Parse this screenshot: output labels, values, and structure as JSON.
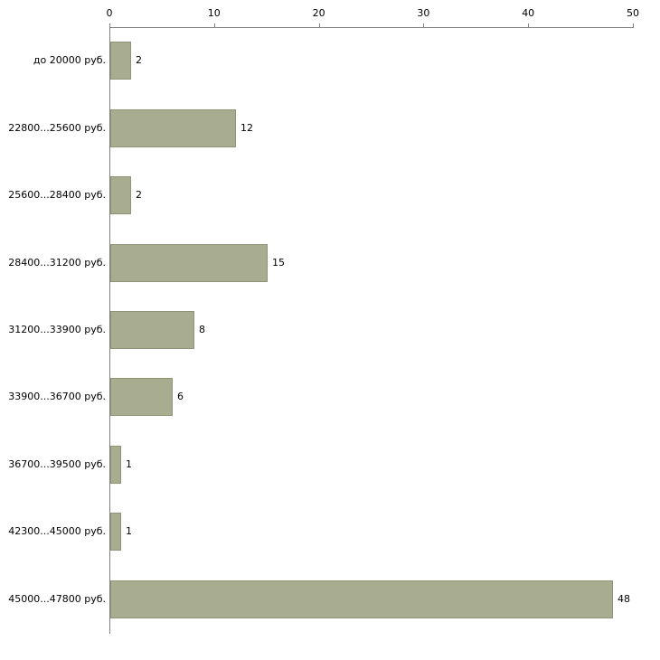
{
  "chart_data": {
    "type": "bar",
    "orientation": "horizontal",
    "title": "",
    "xlabel": "",
    "ylabel": "",
    "categories": [
      "до 20000 руб.",
      "22800...25600 руб.",
      "25600...28400 руб.",
      "28400...31200 руб.",
      "31200...33900 руб.",
      "33900...36700 руб.",
      "36700...39500 руб.",
      "42300...45000 руб.",
      "45000...47800 руб."
    ],
    "values": [
      2,
      12,
      2,
      15,
      8,
      6,
      1,
      1,
      48
    ],
    "xlim": [
      0,
      50
    ],
    "xticks": [
      0,
      10,
      20,
      30,
      40,
      50
    ],
    "grid": false,
    "legend": "none",
    "show_value_labels": true,
    "colors": {
      "bar_fill": "#a9ad90",
      "bar_border": "#8f9378",
      "axis": "#808080",
      "text": "#000000",
      "background": "#ffffff"
    }
  }
}
